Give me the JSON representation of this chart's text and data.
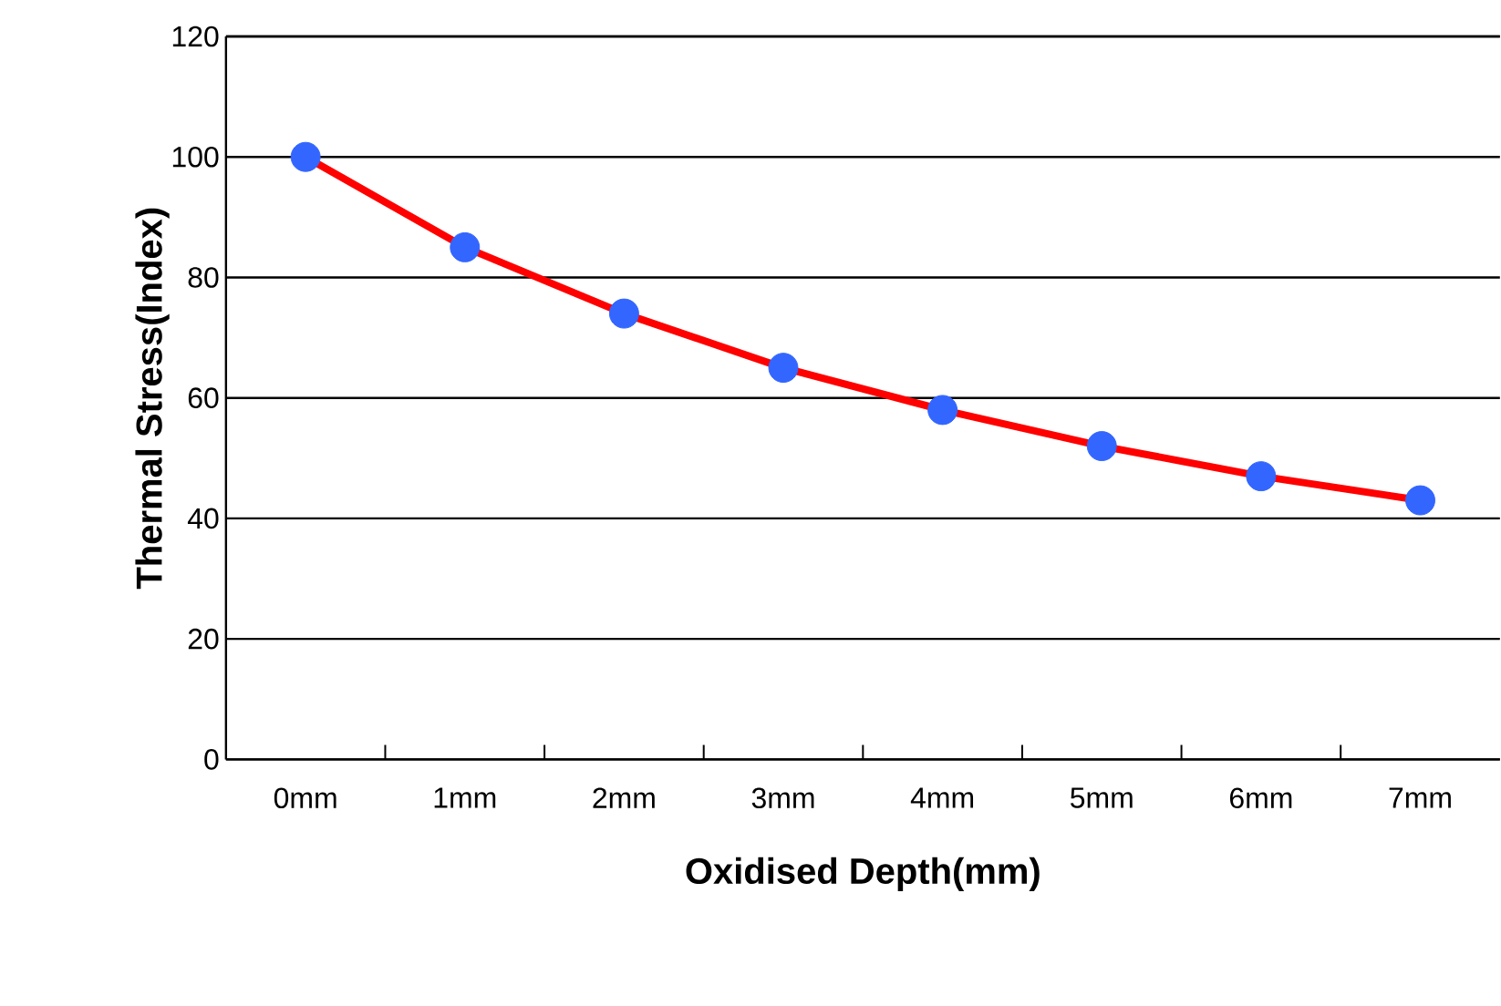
{
  "chart_data": {
    "type": "line",
    "xlabel": "Oxidised Depth(mm)",
    "ylabel": "Thermal Stress(Index)",
    "categories": [
      "0mm",
      "1mm",
      "2mm",
      "3mm",
      "4mm",
      "5mm",
      "6mm",
      "7mm"
    ],
    "series": [
      {
        "color": "#ff0000",
        "values": [
          100,
          85,
          74,
          65,
          58,
          52,
          47,
          43
        ]
      }
    ],
    "marker": "circle",
    "ylim": [
      0,
      120
    ],
    "yticks": [
      0,
      20,
      40,
      60,
      80,
      100,
      120
    ],
    "grid": "y"
  }
}
